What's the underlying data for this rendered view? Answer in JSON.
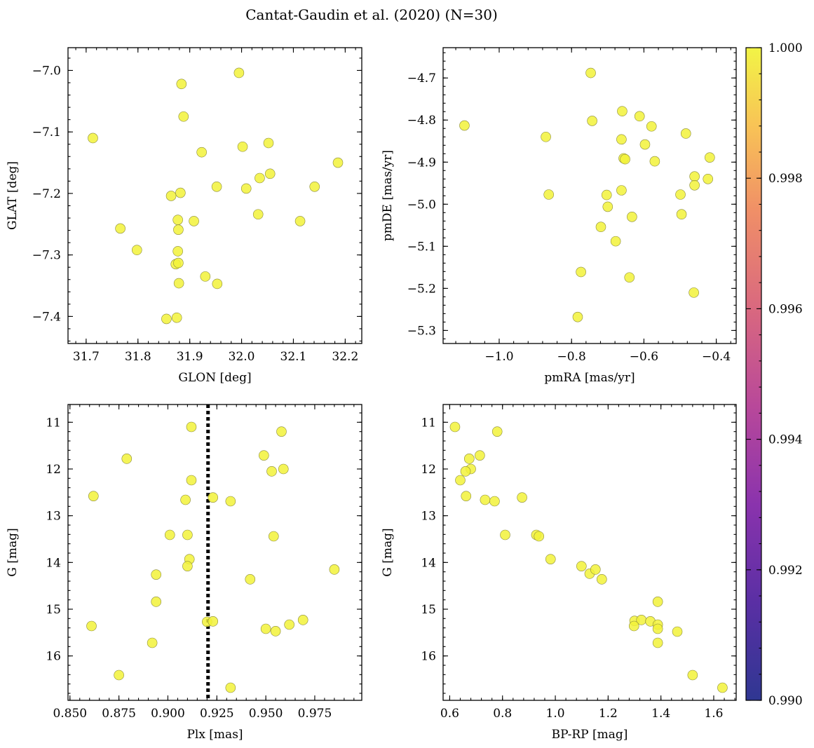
{
  "chart_data": {
    "title": "Cantat-Gaudin et al. (2020) (N=30)",
    "type": "scatter",
    "point_color": "#f2f23a",
    "colorbar": {
      "range": [
        0.99,
        1.0
      ],
      "ticks": [
        "0.990",
        "0.992",
        "0.994",
        "0.996",
        "0.998",
        "1.000"
      ],
      "colormap": "plasma"
    },
    "panels": [
      {
        "name": "glon-glat",
        "xlabel": "GLON [deg]",
        "ylabel": "GLAT [deg]",
        "xlim": [
          31.665,
          32.232
        ],
        "ylim": [
          -7.444,
          -6.963
        ],
        "xticks": [
          31.7,
          31.8,
          31.9,
          32.0,
          32.1,
          32.2
        ],
        "xticklabels": [
          "31.7",
          "31.8",
          "31.9",
          "32.0",
          "32.1",
          "32.2"
        ],
        "yticks": [
          -7.4,
          -7.3,
          -7.2,
          -7.1,
          -7.0
        ],
        "yticklabels": [
          "−7.4",
          "−7.3",
          "−7.2",
          "−7.1",
          "−7.0"
        ],
        "points": [
          [
            31.995,
            -7.004
          ],
          [
            31.884,
            -7.022
          ],
          [
            31.888,
            -7.075
          ],
          [
            31.713,
            -7.11
          ],
          [
            31.923,
            -7.133
          ],
          [
            32.002,
            -7.124
          ],
          [
            32.052,
            -7.118
          ],
          [
            32.186,
            -7.15
          ],
          [
            32.055,
            -7.168
          ],
          [
            32.035,
            -7.175
          ],
          [
            31.952,
            -7.189
          ],
          [
            32.009,
            -7.192
          ],
          [
            32.141,
            -7.189
          ],
          [
            31.882,
            -7.199
          ],
          [
            31.864,
            -7.204
          ],
          [
            31.877,
            -7.243
          ],
          [
            31.908,
            -7.245
          ],
          [
            32.113,
            -7.245
          ],
          [
            32.032,
            -7.234
          ],
          [
            31.766,
            -7.257
          ],
          [
            31.878,
            -7.259
          ],
          [
            31.798,
            -7.292
          ],
          [
            31.877,
            -7.294
          ],
          [
            31.873,
            -7.315
          ],
          [
            31.878,
            -7.313
          ],
          [
            31.93,
            -7.335
          ],
          [
            31.879,
            -7.346
          ],
          [
            31.953,
            -7.347
          ],
          [
            31.855,
            -7.404
          ],
          [
            31.875,
            -7.402
          ]
        ]
      },
      {
        "name": "pmra-pmde",
        "xlabel": "pmRA [mas/yr]",
        "ylabel": "pmDE [mas/yr]",
        "xlim": [
          -1.155,
          -0.345
        ],
        "ylim": [
          -5.331,
          -4.628
        ],
        "xticks": [
          -1.0,
          -0.8,
          -0.6,
          -0.4
        ],
        "xticklabels": [
          "−1.0",
          "−0.8",
          "−0.6",
          "−0.4"
        ],
        "yticks": [
          -5.3,
          -5.2,
          -5.1,
          -5.0,
          -4.9,
          -4.8,
          -4.7
        ],
        "yticklabels": [
          "−5.3",
          "−5.2",
          "−5.1",
          "−5.0",
          "−4.9",
          "−4.8",
          "−4.7"
        ],
        "points": [
          [
            -0.747,
            -4.688
          ],
          [
            -1.096,
            -4.813
          ],
          [
            -0.871,
            -4.84
          ],
          [
            -0.743,
            -4.802
          ],
          [
            -0.66,
            -4.779
          ],
          [
            -0.612,
            -4.791
          ],
          [
            -0.579,
            -4.815
          ],
          [
            -0.484,
            -4.832
          ],
          [
            -0.662,
            -4.846
          ],
          [
            -0.597,
            -4.858
          ],
          [
            -0.656,
            -4.891
          ],
          [
            -0.652,
            -4.893
          ],
          [
            -0.57,
            -4.898
          ],
          [
            -0.418,
            -4.889
          ],
          [
            -0.46,
            -4.934
          ],
          [
            -0.423,
            -4.94
          ],
          [
            -0.46,
            -4.955
          ],
          [
            -0.662,
            -4.967
          ],
          [
            -0.863,
            -4.977
          ],
          [
            -0.703,
            -4.978
          ],
          [
            -0.499,
            -4.977
          ],
          [
            -0.7,
            -5.006
          ],
          [
            -0.496,
            -5.024
          ],
          [
            -0.633,
            -5.03
          ],
          [
            -0.719,
            -5.054
          ],
          [
            -0.678,
            -5.088
          ],
          [
            -0.774,
            -5.161
          ],
          [
            -0.64,
            -5.174
          ],
          [
            -0.462,
            -5.21
          ],
          [
            -0.783,
            -5.268
          ]
        ]
      },
      {
        "name": "plx-g",
        "xlabel": "Plx [mas]",
        "ylabel": "G [mag]",
        "xlim": [
          0.849,
          0.999
        ],
        "ylim": [
          16.95,
          10.62
        ],
        "vline": 0.9205,
        "xticks": [
          0.85,
          0.875,
          0.9,
          0.925,
          0.95,
          0.975
        ],
        "xticklabels": [
          "0.850",
          "0.875",
          "0.900",
          "0.925",
          "0.950",
          "0.975"
        ],
        "yticks": [
          11,
          12,
          13,
          14,
          15,
          16
        ],
        "yticklabels": [
          "11",
          "12",
          "13",
          "14",
          "15",
          "16"
        ],
        "points": [
          [
            0.912,
            11.1
          ],
          [
            0.958,
            11.2
          ],
          [
            0.949,
            11.71
          ],
          [
            0.879,
            11.78
          ],
          [
            0.959,
            12.0
          ],
          [
            0.953,
            12.05
          ],
          [
            0.912,
            12.24
          ],
          [
            0.862,
            12.58
          ],
          [
            0.923,
            12.61
          ],
          [
            0.909,
            12.66
          ],
          [
            0.932,
            12.69
          ],
          [
            0.901,
            13.41
          ],
          [
            0.91,
            13.41
          ],
          [
            0.954,
            13.44
          ],
          [
            0.911,
            13.93
          ],
          [
            0.91,
            14.08
          ],
          [
            0.985,
            14.15
          ],
          [
            0.894,
            14.26
          ],
          [
            0.942,
            14.36
          ],
          [
            0.894,
            14.84
          ],
          [
            0.92,
            15.27
          ],
          [
            0.923,
            15.26
          ],
          [
            0.969,
            15.23
          ],
          [
            0.861,
            15.36
          ],
          [
            0.962,
            15.33
          ],
          [
            0.95,
            15.42
          ],
          [
            0.955,
            15.47
          ],
          [
            0.892,
            15.72
          ],
          [
            0.875,
            16.41
          ],
          [
            0.932,
            16.68
          ]
        ]
      },
      {
        "name": "bprp-g",
        "xlabel": "BP-RP [mag]",
        "ylabel": "G [mag]",
        "xlim": [
          0.575,
          1.685
        ],
        "ylim": [
          16.95,
          10.62
        ],
        "xticks": [
          0.6,
          0.8,
          1.0,
          1.2,
          1.4,
          1.6
        ],
        "xticklabels": [
          "0.6",
          "0.8",
          "1.0",
          "1.2",
          "1.4",
          "1.6"
        ],
        "yticks": [
          11,
          12,
          13,
          14,
          15,
          16
        ],
        "yticklabels": [
          "11",
          "12",
          "13",
          "14",
          "15",
          "16"
        ],
        "points": [
          [
            0.62,
            11.1
          ],
          [
            0.78,
            11.2
          ],
          [
            0.714,
            11.71
          ],
          [
            0.674,
            11.78
          ],
          [
            0.68,
            12.0
          ],
          [
            0.66,
            12.05
          ],
          [
            0.64,
            12.24
          ],
          [
            0.662,
            12.58
          ],
          [
            0.874,
            12.61
          ],
          [
            0.734,
            12.66
          ],
          [
            0.77,
            12.69
          ],
          [
            0.81,
            13.41
          ],
          [
            0.928,
            13.41
          ],
          [
            0.938,
            13.44
          ],
          [
            0.982,
            13.93
          ],
          [
            1.099,
            14.08
          ],
          [
            1.13,
            14.24
          ],
          [
            1.152,
            14.15
          ],
          [
            1.176,
            14.36
          ],
          [
            1.388,
            14.84
          ],
          [
            1.3,
            15.25
          ],
          [
            1.326,
            15.23
          ],
          [
            1.36,
            15.26
          ],
          [
            1.298,
            15.36
          ],
          [
            1.388,
            15.33
          ],
          [
            1.388,
            15.42
          ],
          [
            1.462,
            15.48
          ],
          [
            1.388,
            15.72
          ],
          [
            1.52,
            16.41
          ],
          [
            1.633,
            16.68
          ]
        ]
      }
    ]
  }
}
